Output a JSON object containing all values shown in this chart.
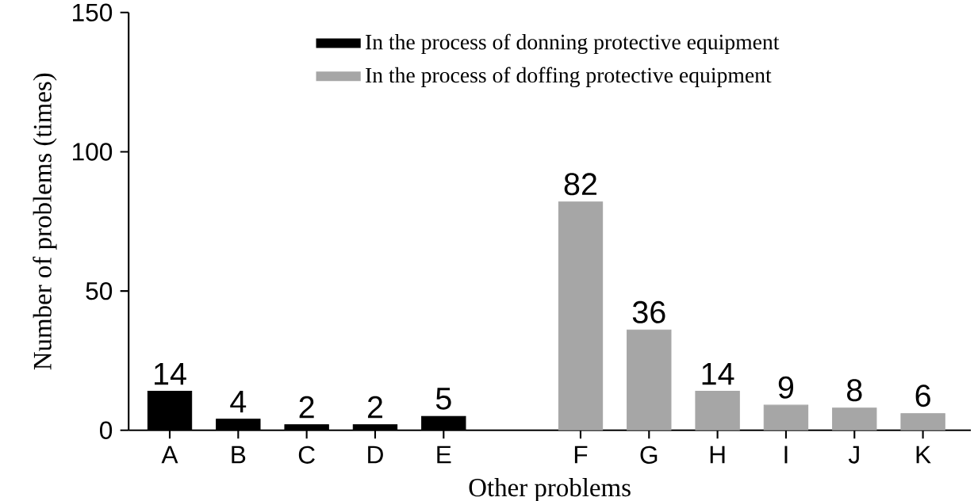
{
  "chart_data": {
    "type": "bar",
    "xlabel": "Other problems",
    "ylabel": "Number of problems (times)",
    "categories": [
      "A",
      "B",
      "C",
      "D",
      "E",
      null,
      "F",
      "G",
      "H",
      "I",
      "J",
      "K"
    ],
    "series": [
      {
        "name": "In the process of donning protective equipment",
        "color": "#000000",
        "values": [
          14,
          4,
          2,
          2,
          5,
          null,
          null,
          null,
          null,
          null,
          null,
          null
        ]
      },
      {
        "name": "In the process of doffing protective equipment",
        "color": "#a6a6a6",
        "values": [
          null,
          null,
          null,
          null,
          null,
          null,
          82,
          36,
          14,
          9,
          8,
          6
        ]
      }
    ],
    "ylim": [
      0,
      150
    ],
    "yticks": [
      0,
      50,
      100,
      150
    ],
    "data_labels": true,
    "legend": "top",
    "grid": false
  }
}
